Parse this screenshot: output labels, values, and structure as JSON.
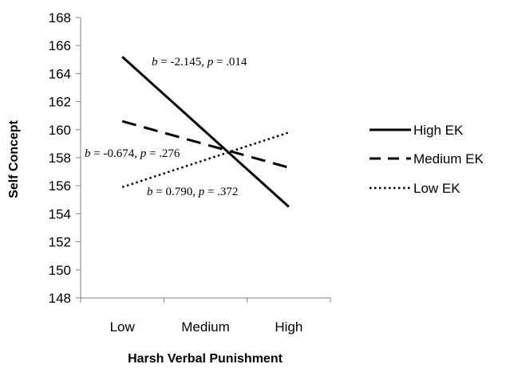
{
  "chart_data": {
    "type": "line",
    "categories": [
      "Low",
      "Medium",
      "High"
    ],
    "xlabel": "Harsh Verbal Punishment",
    "ylabel": "Self Concept",
    "ylim": [
      148,
      168
    ],
    "yticks": [
      148,
      150,
      152,
      154,
      156,
      158,
      160,
      162,
      164,
      166,
      168
    ],
    "grid": false,
    "legend_position": "right",
    "series": [
      {
        "name": "High EK",
        "style": "solid",
        "values": [
          165.2,
          null,
          154.5
        ]
      },
      {
        "name": "Medium EK",
        "style": "dashed",
        "values": [
          160.6,
          null,
          157.3
        ]
      },
      {
        "name": "Low EK",
        "style": "dotted",
        "values": [
          155.9,
          null,
          159.8
        ]
      }
    ],
    "annotations": [
      {
        "b_label": "b",
        "b_value": " = -2.145, ",
        "p_label": "p",
        "p_value": " = .014"
      },
      {
        "b_label": "b",
        "b_value": " = -0.674, ",
        "p_label": "p",
        "p_value": " = .276"
      },
      {
        "b_label": "b",
        "b_value": " = 0.790, ",
        "p_label": "p",
        "p_value": " = .372"
      }
    ],
    "colors": {
      "line": "#000000",
      "axis": "#808080"
    }
  }
}
